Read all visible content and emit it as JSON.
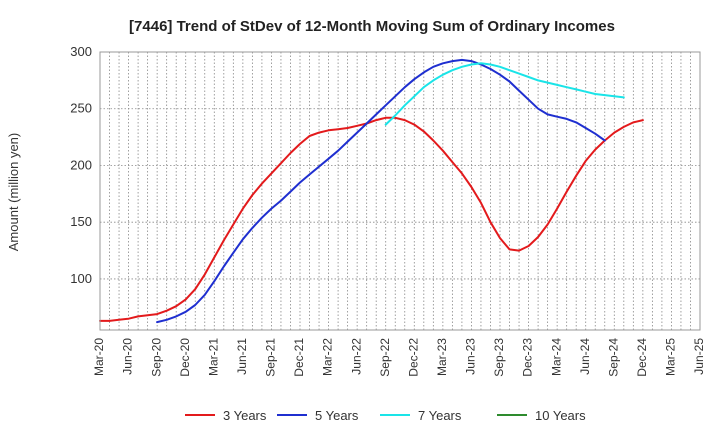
{
  "chart_data": {
    "type": "line",
    "title": "[7446]  Trend of StDev of 12-Month Moving Sum of Ordinary Incomes",
    "xlabel": "",
    "ylabel": "Amount (million yen)",
    "ylim": [
      55,
      300
    ],
    "yticks": [
      100,
      150,
      200,
      250,
      300
    ],
    "x_start": "Mar-20",
    "x_step_months": 1,
    "xtick_labels": [
      "Mar-20",
      "Jun-20",
      "Sep-20",
      "Dec-20",
      "Mar-21",
      "Jun-21",
      "Sep-21",
      "Dec-21",
      "Mar-22",
      "Jun-22",
      "Sep-22",
      "Dec-22",
      "Mar-23",
      "Jun-23",
      "Sep-23",
      "Dec-23",
      "Mar-24",
      "Jun-24",
      "Sep-24",
      "Dec-24",
      "Mar-25",
      "Jun-25"
    ],
    "grid": true,
    "legend_position": "bottom",
    "series": [
      {
        "name": "3 Years",
        "color": "#e31a1c",
        "start_month_index": 0,
        "values": [
          63,
          63,
          64,
          65,
          67,
          68,
          69,
          72,
          76,
          82,
          91,
          104,
          119,
          134,
          148,
          162,
          174,
          184,
          193,
          202,
          211,
          219,
          226,
          229,
          231,
          232,
          233,
          235,
          237,
          240,
          242,
          242,
          240,
          236,
          230,
          222,
          213,
          203,
          193,
          181,
          167,
          150,
          136,
          126,
          125,
          129,
          137,
          148,
          162,
          177,
          191,
          204,
          214,
          222,
          229,
          234,
          238,
          240
        ]
      },
      {
        "name": "5 Years",
        "color": "#1f2fd0",
        "start_month_index": 6,
        "values": [
          62,
          64,
          67,
          71,
          77,
          86,
          98,
          111,
          123,
          135,
          145,
          154,
          162,
          169,
          177,
          185,
          192,
          199,
          206,
          213,
          221,
          229,
          237,
          245,
          253,
          261,
          269,
          276,
          282,
          287,
          290,
          292,
          293,
          292,
          289,
          285,
          280,
          274,
          266,
          258,
          250,
          245,
          243,
          241,
          238,
          233,
          228,
          222
        ]
      },
      {
        "name": "7 Years",
        "color": "#1ae4e8",
        "start_month_index": 30,
        "values": [
          236,
          244,
          253,
          261,
          269,
          275,
          280,
          284,
          287,
          289,
          290,
          289,
          287,
          284,
          281,
          278,
          275,
          273,
          271,
          269,
          267,
          265,
          263,
          262,
          261,
          260
        ]
      },
      {
        "name": "10 Years",
        "color": "#2e8b2e",
        "start_month_index": 0,
        "values": []
      }
    ]
  }
}
